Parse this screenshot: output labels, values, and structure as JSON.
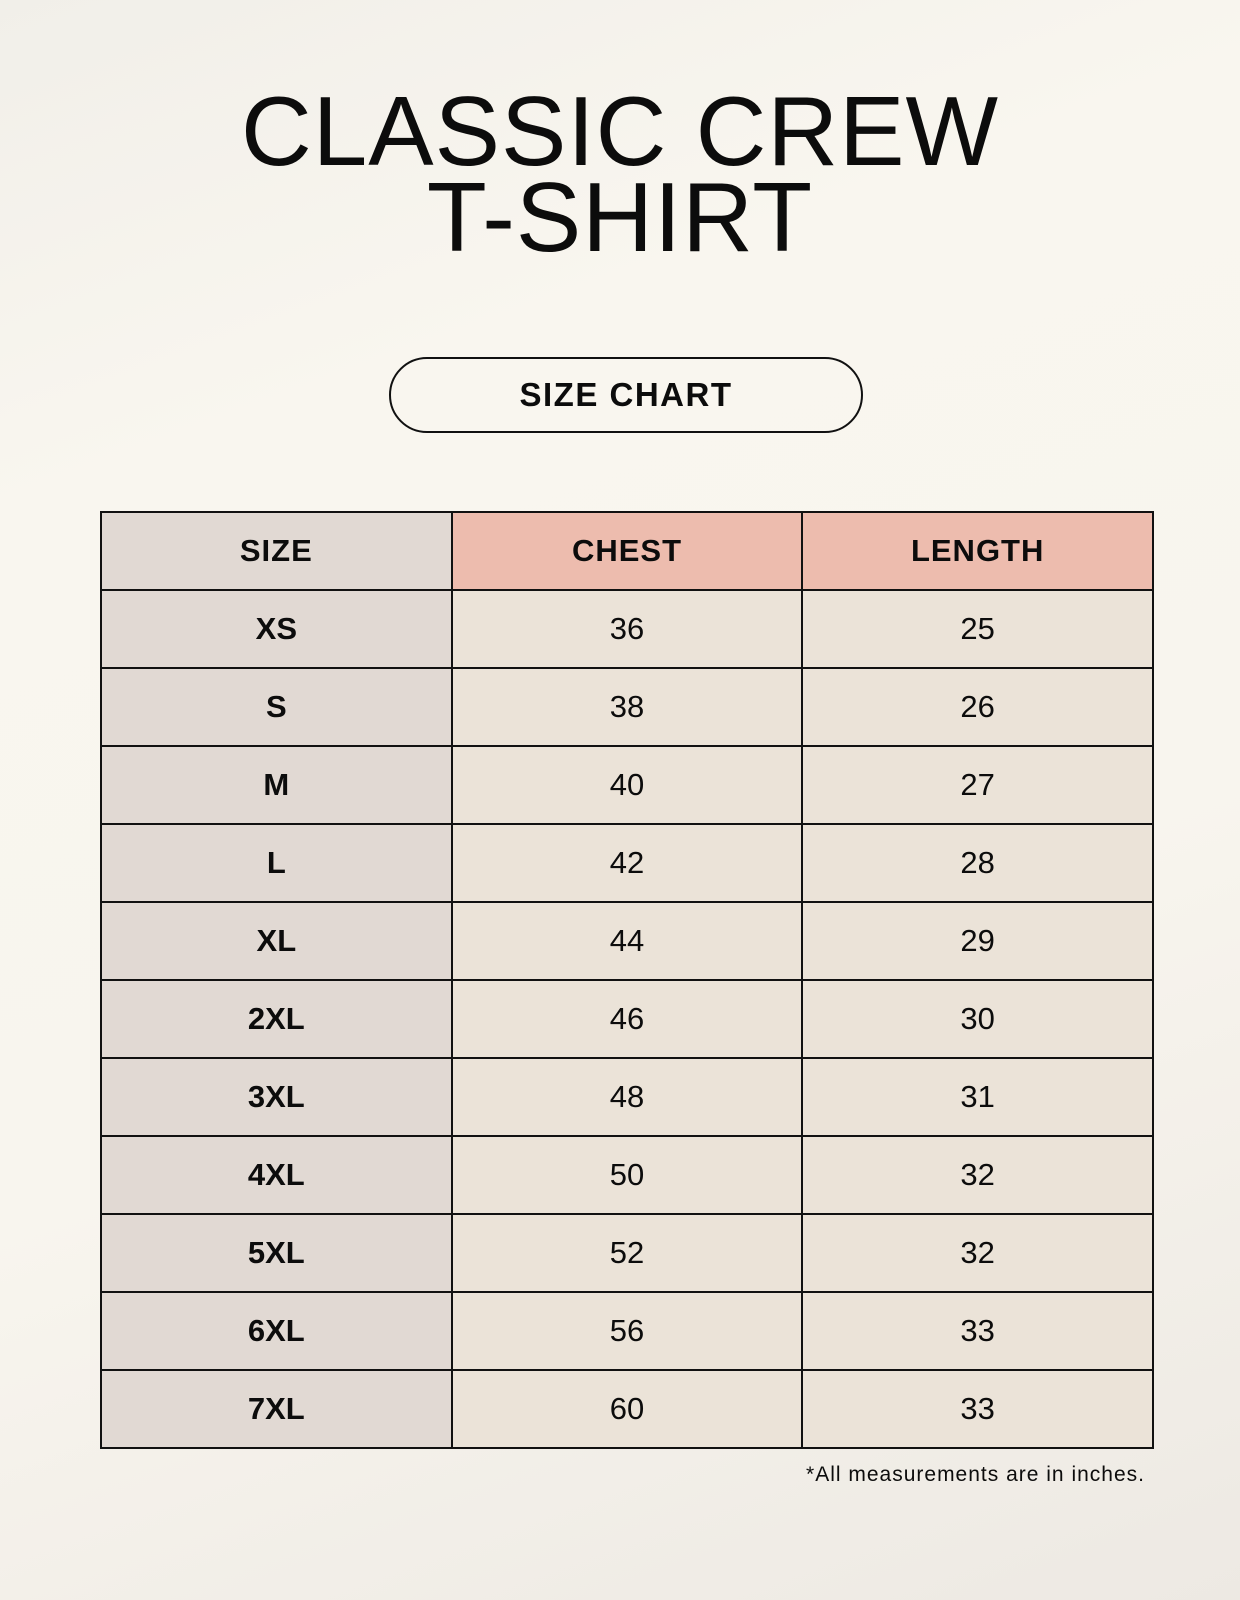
{
  "title_lines": [
    "CLASSIC CREW",
    "T-SHIRT"
  ],
  "badge": "SIZE CHART",
  "table": {
    "headers": [
      "SIZE",
      "CHEST",
      "LENGTH"
    ],
    "rows": [
      [
        "XS",
        "36",
        "25"
      ],
      [
        "S",
        "38",
        "26"
      ],
      [
        "M",
        "40",
        "27"
      ],
      [
        "L",
        "42",
        "28"
      ],
      [
        "XL",
        "44",
        "29"
      ],
      [
        "2XL",
        "46",
        "30"
      ],
      [
        "3XL",
        "48",
        "31"
      ],
      [
        "4XL",
        "50",
        "32"
      ],
      [
        "5XL",
        "52",
        "32"
      ],
      [
        "6XL",
        "56",
        "33"
      ],
      [
        "7XL",
        "60",
        "33"
      ]
    ]
  },
  "footnote": "*All measurements are in inches.",
  "colors": {
    "size_column": "#e1d9d3",
    "measure_header": "#edbcae",
    "value_cells": "#ebe3d8"
  }
}
